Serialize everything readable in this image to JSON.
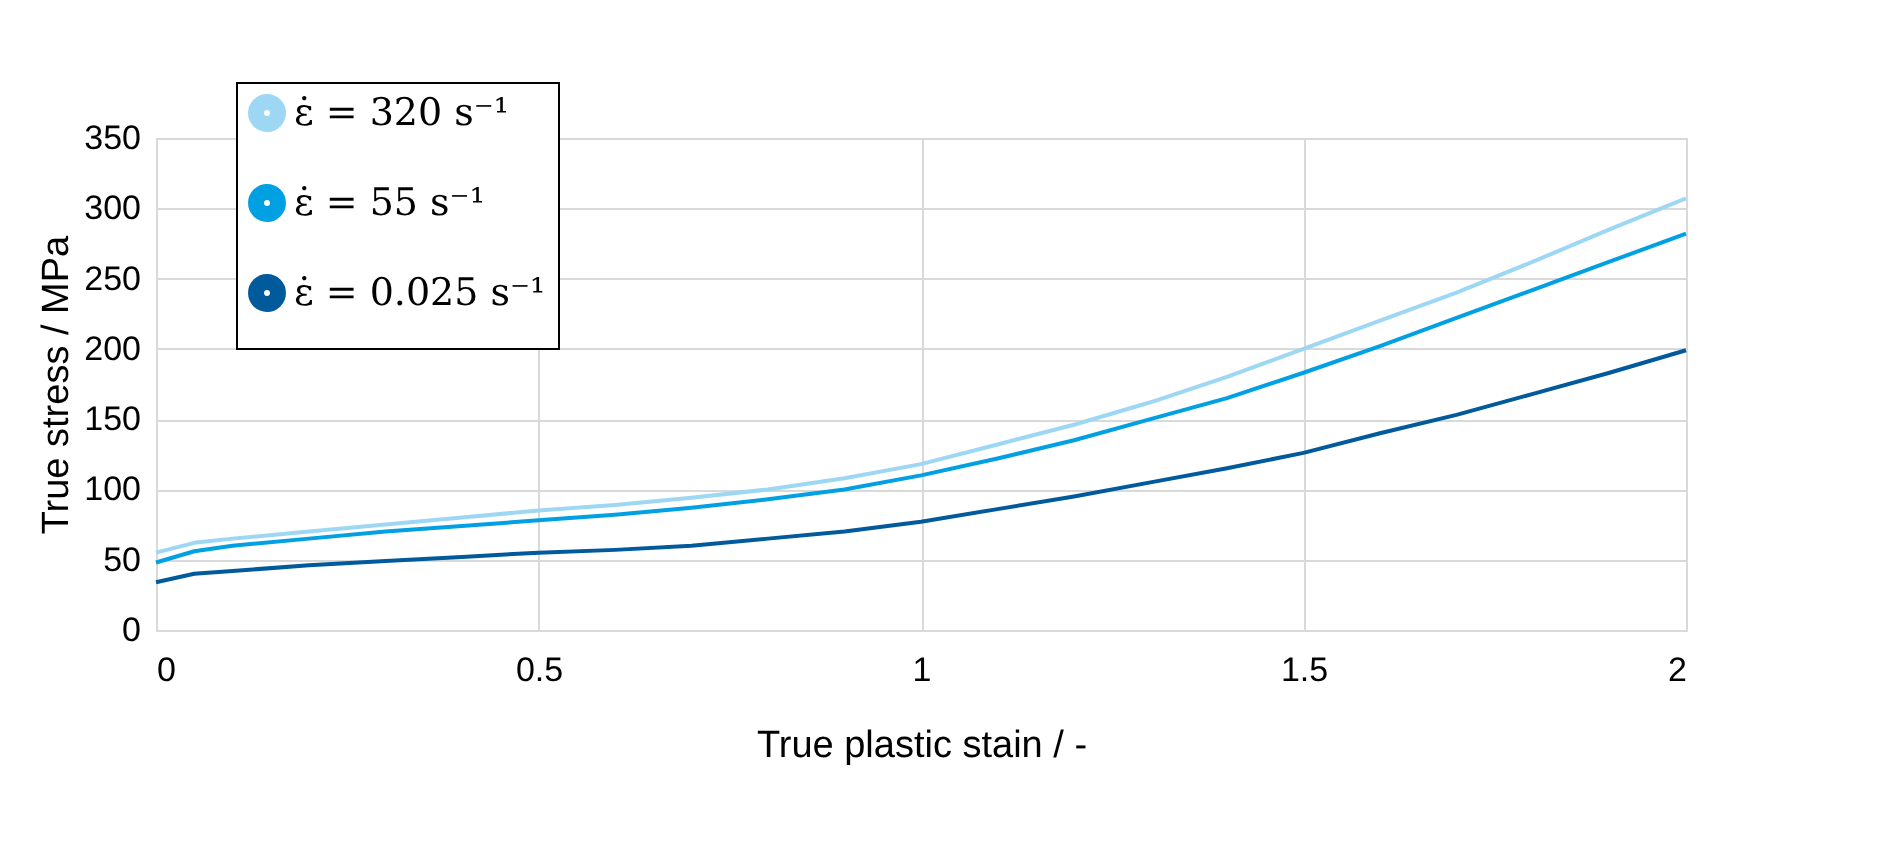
{
  "chart_data": {
    "type": "line",
    "xlabel": "True plastic stain / -",
    "ylabel": "True stress / MPa",
    "x": [
      0,
      0.05,
      0.1,
      0.2,
      0.3,
      0.4,
      0.5,
      0.6,
      0.7,
      0.8,
      0.9,
      1.0,
      1.1,
      1.2,
      1.3,
      1.4,
      1.5,
      1.6,
      1.7,
      1.8,
      1.9,
      2.0
    ],
    "series": [
      {
        "name": "ε̇ = 320 s⁻¹",
        "color": "#9dd7f3",
        "values": [
          55,
          62,
          65,
          70,
          75,
          80,
          85,
          89,
          94,
          100,
          108,
          118,
          132,
          146,
          162,
          180,
          200,
          220,
          240,
          262,
          285,
          307
        ]
      },
      {
        "name": "ε̇ = 55 s⁻¹",
        "color": "#00a0e3",
        "values": [
          48,
          56,
          60,
          65,
          70,
          74,
          78,
          82,
          87,
          93,
          100,
          110,
          122,
          135,
          150,
          165,
          183,
          202,
          222,
          242,
          262,
          282
        ]
      },
      {
        "name": "ε̇ = 0.025 s⁻¹",
        "color": "#005a9c",
        "values": [
          34,
          40,
          42,
          46,
          49,
          52,
          55,
          57,
          60,
          65,
          70,
          77,
          86,
          95,
          105,
          115,
          126,
          140,
          153,
          168,
          183,
          199
        ]
      }
    ],
    "xlim": [
      0,
      2
    ],
    "xticks": [
      0,
      0.5,
      1,
      1.5,
      2
    ],
    "ylim": [
      0,
      350
    ],
    "yticks": [
      0,
      50,
      100,
      150,
      200,
      250,
      300,
      350
    ],
    "grid": true,
    "legend": "top left",
    "marker": "none",
    "line_style": "solid"
  }
}
